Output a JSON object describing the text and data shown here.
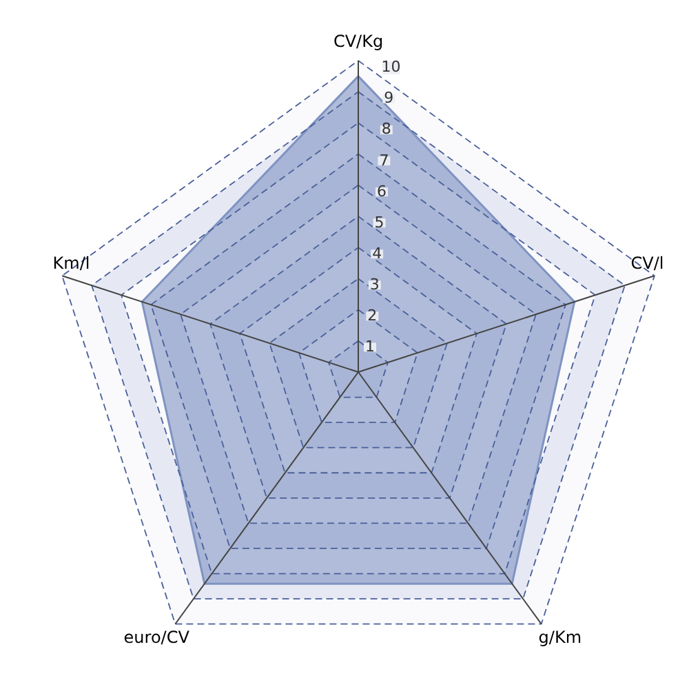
{
  "chart_data": {
    "type": "radar",
    "categories": [
      "CV/Kg",
      "CV/l",
      "g/Km",
      "euro/CV",
      "Km/l"
    ],
    "series": [
      {
        "color": "#7f93c2",
        "values": [
          9.5,
          7.3,
          8.4,
          8.4,
          7.3
        ]
      }
    ],
    "ylim": [
      0,
      10
    ],
    "yticks": [
      1,
      2,
      3,
      4,
      5,
      6,
      7,
      8,
      9,
      10
    ],
    "grid": true,
    "line_style": "solid",
    "marker": "none"
  }
}
